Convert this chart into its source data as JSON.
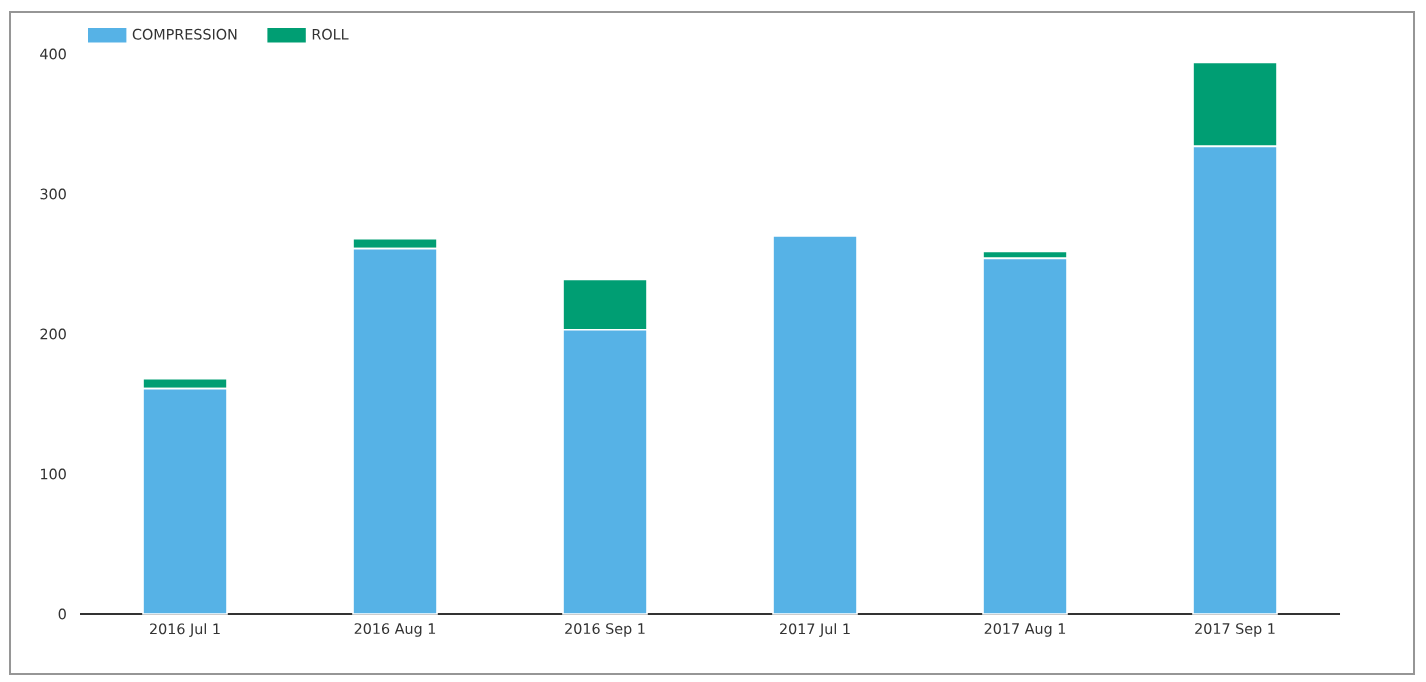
{
  "chart_data": {
    "type": "bar",
    "stacked": true,
    "legend": "top left",
    "categories": [
      "2016 Jul 1",
      "2016 Aug 1",
      "2016 Sep 1",
      "2017 Jul 1",
      "2017 Aug 1",
      "2017 Sep 1"
    ],
    "series": [
      {
        "name": "COMPRESSION",
        "color": "#56b2e6",
        "values": [
          161,
          261,
          203,
          270,
          254,
          334
        ]
      },
      {
        "name": "ROLL",
        "color": "#009e73",
        "values": [
          7,
          7,
          36,
          1,
          5,
          60
        ]
      }
    ],
    "ylim": [
      0,
      400
    ],
    "yticks": [
      0,
      100,
      200,
      300,
      400
    ]
  }
}
